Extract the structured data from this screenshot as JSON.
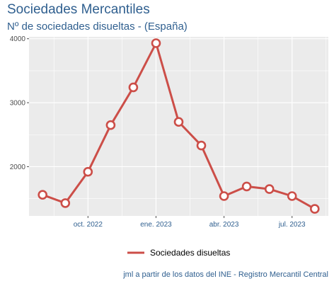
{
  "header": {
    "title": "Sociedades Mercantiles",
    "subtitle": "Nº de sociedades disueltas - (España)"
  },
  "caption": "jml a partir de los datos del INE - Registro Mercantil Central",
  "colors": {
    "line": "#cc4e48",
    "panel": "#ebebeb",
    "grid": "#ffffff",
    "text": "#2f5f8f"
  },
  "chart_data": {
    "type": "line",
    "title": "Sociedades Mercantiles",
    "subtitle": "Nº de sociedades disueltas - (España)",
    "xlabel": "",
    "ylabel": "",
    "x": [
      "2022-08",
      "2022-09",
      "2022-10",
      "2022-11",
      "2022-12",
      "2023-01",
      "2023-02",
      "2023-03",
      "2023-04",
      "2023-05",
      "2023-06",
      "2023-07",
      "2023-08"
    ],
    "x_ticks": [
      {
        "x": "2022-10",
        "label": "oct. 2022"
      },
      {
        "x": "2023-01",
        "label": "ene. 2023"
      },
      {
        "x": "2023-04",
        "label": "abr. 2023"
      },
      {
        "x": "2023-07",
        "label": "jul. 2023"
      }
    ],
    "y_ticks": [
      2000,
      3000,
      4000
    ],
    "ylim": [
      1230,
      4030
    ],
    "grid": true,
    "legend_position": "bottom",
    "series": [
      {
        "name": "Sociedades disueltas",
        "values": [
          1560,
          1430,
          1920,
          2650,
          3240,
          3930,
          2700,
          2330,
          1540,
          1690,
          1650,
          1540,
          1340
        ]
      }
    ]
  }
}
